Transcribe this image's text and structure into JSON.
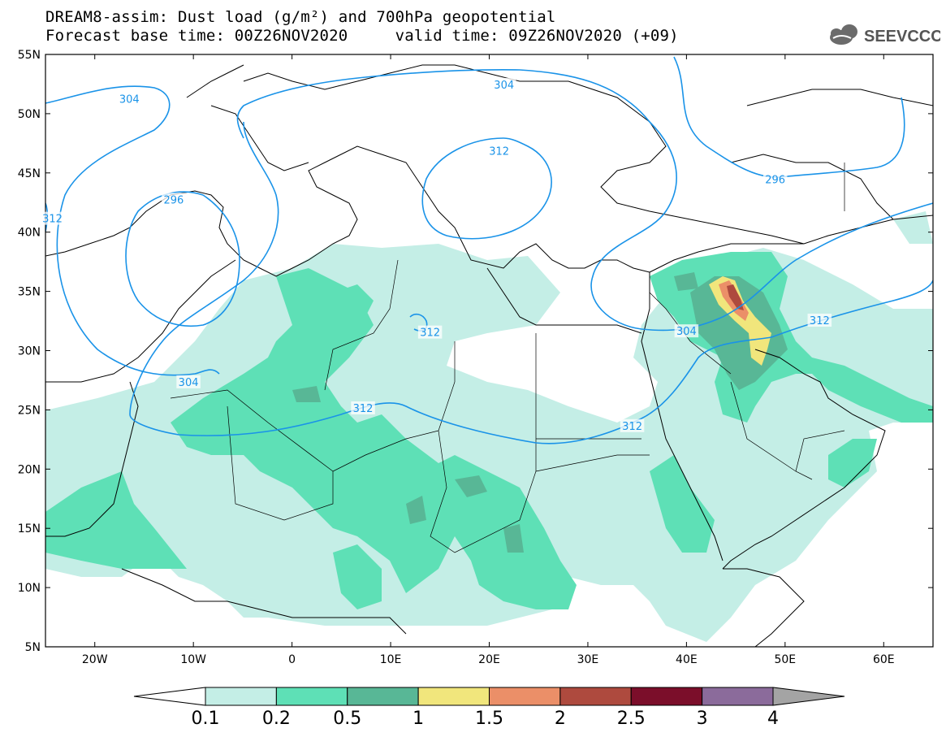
{
  "title": {
    "line1": "DREAM8-assim: Dust load (g/m²) and 700hPa geopotential",
    "line2": "Forecast base time: 00Z26NOV2020     valid time: 09Z26NOV2020 (+09)"
  },
  "logo": {
    "text": "SEEVCCC",
    "icon": "cloud-icon"
  },
  "map": {
    "lon_range": [
      -25,
      65
    ],
    "lat_range": [
      5,
      55
    ],
    "lat_ticks": [
      "55N",
      "50N",
      "45N",
      "40N",
      "35N",
      "30N",
      "25N",
      "20N",
      "15N",
      "10N",
      "5N"
    ],
    "lon_ticks": [
      "20W",
      "10W",
      "0",
      "10E",
      "20E",
      "30E",
      "40E",
      "50E",
      "60E"
    ],
    "contour_color": "#1a93e8",
    "contour_labels": [
      {
        "text": "304",
        "lon": -16.5,
        "lat": 51.2
      },
      {
        "text": "304",
        "lon": 21.5,
        "lat": 52.4
      },
      {
        "text": "312",
        "lon": 21,
        "lat": 46.8
      },
      {
        "text": "296",
        "lon": -12,
        "lat": 42.7
      },
      {
        "text": "296",
        "lon": 49,
        "lat": 44.4
      },
      {
        "text": "312",
        "lon": 14,
        "lat": 31.5
      },
      {
        "text": "312",
        "lon": 7.2,
        "lat": 25.1
      },
      {
        "text": "312",
        "lon": 34.5,
        "lat": 23.6
      },
      {
        "text": "304",
        "lon": 40,
        "lat": 31.6
      },
      {
        "text": "312",
        "lon": 53.5,
        "lat": 32.5
      },
      {
        "text": "304",
        "lon": -10.5,
        "lat": 27.3
      },
      {
        "text": "312",
        "lon": -24.3,
        "lat": 41.1
      }
    ]
  },
  "colorbar": {
    "levels": [
      "0.1",
      "0.2",
      "0.5",
      "1",
      "1.5",
      "2",
      "2.5",
      "3",
      "4"
    ],
    "colors": [
      "#c4eee6",
      "#5ee0b6",
      "#58b796",
      "#f1e67c",
      "#eb8f68",
      "#ae4a3e",
      "#7b0e2a",
      "#8b6b9b"
    ],
    "under_color": "#ffffff",
    "over_color": "#a4a4a4"
  }
}
